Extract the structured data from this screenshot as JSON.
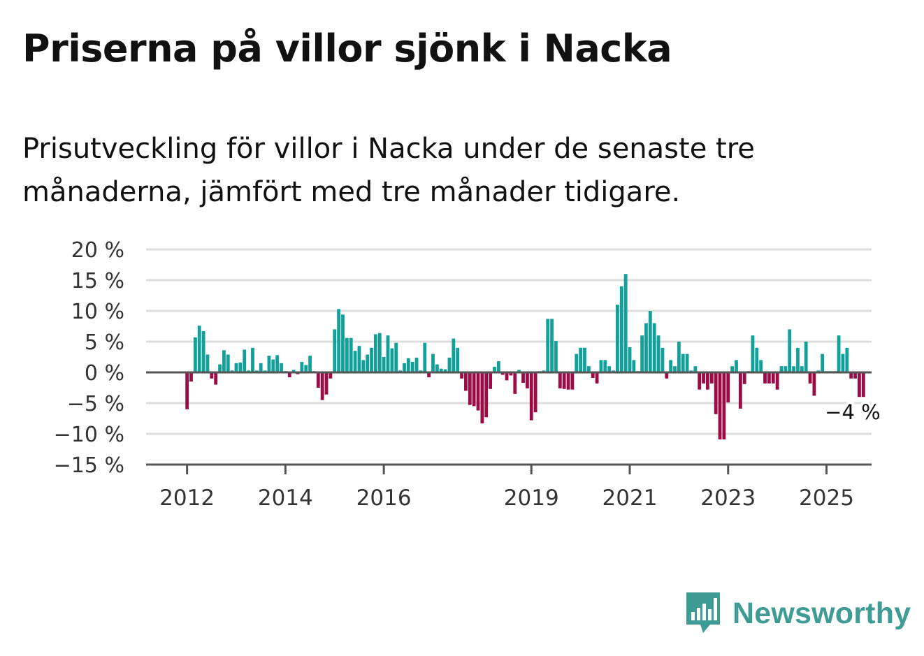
{
  "header": {
    "title": "Priserna på villor sjönk i Nacka",
    "subtitle": "Prisutveckling för villor i Nacka under de senaste tre månaderna, jämfört med tre månader tidigare."
  },
  "brand": {
    "name": "Newsworthy",
    "icon": "newsworthy-logo-icon",
    "color": "#3f9c94"
  },
  "colors": {
    "positive": "#11a09a",
    "negative": "#9b0b46",
    "grid": "#dddddd",
    "axis": "#555555"
  },
  "chart_data": {
    "type": "bar",
    "title": "Priserna på villor sjönk i Nacka",
    "subtitle": "Prisutveckling för villor i Nacka under de senaste tre månaderna, jämfört med tre månader tidigare.",
    "unit": "%",
    "ylim": [
      -15,
      20
    ],
    "yticks": [
      20,
      15,
      10,
      5,
      0,
      -5,
      -10,
      -15
    ],
    "ytick_labels": [
      "20 %",
      "15 %",
      "10 %",
      "5 %",
      "0 %",
      "−5 %",
      "−10 %",
      "−15 %"
    ],
    "xticks": [
      "2012",
      "2014",
      "2016",
      "2019",
      "2021",
      "2023",
      "2025"
    ],
    "xlim": [
      "2011-03",
      "2025-12"
    ],
    "grid": true,
    "annotation": {
      "label": "−4 %",
      "date": "2025-07",
      "value": -4
    },
    "series": [
      {
        "values": [
          [
            "2012-01",
            -6
          ],
          [
            "2012-02",
            -1.5
          ],
          [
            "2012-03",
            5.7
          ],
          [
            "2012-04",
            7.6
          ],
          [
            "2012-05",
            6.7
          ],
          [
            "2012-06",
            2.9
          ],
          [
            "2012-07",
            -1
          ],
          [
            "2012-08",
            -2
          ],
          [
            "2012-09",
            1.3
          ],
          [
            "2012-10",
            3.6
          ],
          [
            "2012-11",
            2.9
          ],
          [
            "2012-12",
            0.3
          ],
          [
            "2013-01",
            1.5
          ],
          [
            "2013-02",
            1.6
          ],
          [
            "2013-03",
            3.7
          ],
          [
            "2013-04",
            0.3
          ],
          [
            "2013-05",
            4
          ],
          [
            "2013-06",
            0.3
          ],
          [
            "2013-07",
            1.5
          ],
          [
            "2013-08",
            0.3
          ],
          [
            "2013-09",
            2.7
          ],
          [
            "2013-10",
            2.1
          ],
          [
            "2013-11",
            2.8
          ],
          [
            "2013-12",
            1.5
          ],
          [
            "2014-01",
            0.2
          ],
          [
            "2014-02",
            -0.8
          ],
          [
            "2014-03",
            0.4
          ],
          [
            "2014-04",
            -0.3
          ],
          [
            "2014-05",
            1.7
          ],
          [
            "2014-06",
            1.2
          ],
          [
            "2014-07",
            2.7
          ],
          [
            "2014-08",
            0.2
          ],
          [
            "2014-09",
            -2.5
          ],
          [
            "2014-10",
            -4.5
          ],
          [
            "2014-11",
            -3.6
          ],
          [
            "2014-12",
            -1
          ],
          [
            "2015-01",
            7
          ],
          [
            "2015-02",
            10.3
          ],
          [
            "2015-03",
            9.4
          ],
          [
            "2015-04",
            5.6
          ],
          [
            "2015-05",
            5.6
          ],
          [
            "2015-06",
            3.5
          ],
          [
            "2015-07",
            4.3
          ],
          [
            "2015-08",
            2
          ],
          [
            "2015-09",
            2.9
          ],
          [
            "2015-10",
            4
          ],
          [
            "2015-11",
            6.2
          ],
          [
            "2015-12",
            6.4
          ],
          [
            "2016-01",
            2.5
          ],
          [
            "2016-02",
            6
          ],
          [
            "2016-03",
            3.9
          ],
          [
            "2016-04",
            4.8
          ],
          [
            "2016-05",
            0.3
          ],
          [
            "2016-06",
            1.5
          ],
          [
            "2016-07",
            2.3
          ],
          [
            "2016-08",
            1.7
          ],
          [
            "2016-09",
            2.4
          ],
          [
            "2016-10",
            0.3
          ],
          [
            "2016-11",
            4.8
          ],
          [
            "2016-12",
            -0.8
          ],
          [
            "2017-01",
            3
          ],
          [
            "2017-02",
            1.3
          ],
          [
            "2017-03",
            0.6
          ],
          [
            "2017-04",
            0.5
          ],
          [
            "2017-05",
            2.4
          ],
          [
            "2017-06",
            5.5
          ],
          [
            "2017-07",
            4
          ],
          [
            "2017-08",
            -1
          ],
          [
            "2017-09",
            -3
          ],
          [
            "2017-10",
            -5.3
          ],
          [
            "2017-11",
            -5.5
          ],
          [
            "2017-12",
            -6.2
          ],
          [
            "2018-01",
            -8.3
          ],
          [
            "2018-02",
            -7.3
          ],
          [
            "2018-03",
            -2.7
          ],
          [
            "2018-04",
            0.9
          ],
          [
            "2018-05",
            1.8
          ],
          [
            "2018-06",
            -0.4
          ],
          [
            "2018-07",
            -1.3
          ],
          [
            "2018-08",
            -0.5
          ],
          [
            "2018-09",
            -3.5
          ],
          [
            "2018-10",
            0.4
          ],
          [
            "2018-11",
            -1.7
          ],
          [
            "2018-12",
            -2.6
          ],
          [
            "2019-01",
            -7.8
          ],
          [
            "2019-02",
            -6.5
          ],
          [
            "2019-03",
            0.2
          ],
          [
            "2019-04",
            0.3
          ],
          [
            "2019-05",
            8.7
          ],
          [
            "2019-06",
            8.7
          ],
          [
            "2019-07",
            5.1
          ],
          [
            "2019-08",
            -2.6
          ],
          [
            "2019-09",
            -2.7
          ],
          [
            "2019-10",
            -2.8
          ],
          [
            "2019-11",
            -2.8
          ],
          [
            "2019-12",
            3
          ],
          [
            "2020-01",
            4
          ],
          [
            "2020-02",
            4
          ],
          [
            "2020-03",
            1
          ],
          [
            "2020-04",
            -0.9
          ],
          [
            "2020-05",
            -1.8
          ],
          [
            "2020-06",
            2
          ],
          [
            "2020-07",
            2
          ],
          [
            "2020-08",
            1
          ],
          [
            "2020-09",
            0.3
          ],
          [
            "2020-10",
            11
          ],
          [
            "2020-11",
            14
          ],
          [
            "2020-12",
            16
          ],
          [
            "2021-01",
            4.1
          ],
          [
            "2021-02",
            2
          ],
          [
            "2021-03",
            0.2
          ],
          [
            "2021-04",
            6
          ],
          [
            "2021-05",
            8
          ],
          [
            "2021-06",
            10
          ],
          [
            "2021-07",
            8
          ],
          [
            "2021-08",
            6
          ],
          [
            "2021-09",
            4
          ],
          [
            "2021-10",
            -1
          ],
          [
            "2021-11",
            2
          ],
          [
            "2021-12",
            1
          ],
          [
            "2022-01",
            5
          ],
          [
            "2022-02",
            3
          ],
          [
            "2022-03",
            3
          ],
          [
            "2022-04",
            0.3
          ],
          [
            "2022-05",
            1
          ],
          [
            "2022-06",
            -2.8
          ],
          [
            "2022-07",
            -1.8
          ],
          [
            "2022-08",
            -2.8
          ],
          [
            "2022-09",
            -1.8
          ],
          [
            "2022-10",
            -6.8
          ],
          [
            "2022-11",
            -10.9
          ],
          [
            "2022-12",
            -10.9
          ],
          [
            "2023-01",
            -4.9
          ],
          [
            "2023-02",
            1
          ],
          [
            "2023-03",
            2
          ],
          [
            "2023-04",
            -5.9
          ],
          [
            "2023-05",
            -1.9
          ],
          [
            "2023-06",
            0.2
          ],
          [
            "2023-07",
            6
          ],
          [
            "2023-08",
            4
          ],
          [
            "2023-09",
            2
          ],
          [
            "2023-10",
            -1.8
          ],
          [
            "2023-11",
            -1.8
          ],
          [
            "2023-12",
            -1.8
          ],
          [
            "2024-01",
            -2.8
          ],
          [
            "2024-02",
            1
          ],
          [
            "2024-03",
            1
          ],
          [
            "2024-04",
            7
          ],
          [
            "2024-05",
            1
          ],
          [
            "2024-06",
            4
          ],
          [
            "2024-07",
            1
          ],
          [
            "2024-08",
            5
          ],
          [
            "2024-09",
            -1.8
          ],
          [
            "2024-10",
            -3.8
          ],
          [
            "2024-11",
            0.3
          ],
          [
            "2024-12",
            3
          ],
          [
            "2025-01",
            0.2
          ],
          [
            "2025-02",
            0.2
          ],
          [
            "2025-03",
            0.2
          ],
          [
            "2025-04",
            6
          ],
          [
            "2025-05",
            3
          ],
          [
            "2025-06",
            4
          ],
          [
            "2025-07",
            -1
          ],
          [
            "2025-08",
            -1
          ],
          [
            "2025-09",
            -4
          ],
          [
            "2025-10",
            -4
          ]
        ]
      }
    ]
  }
}
